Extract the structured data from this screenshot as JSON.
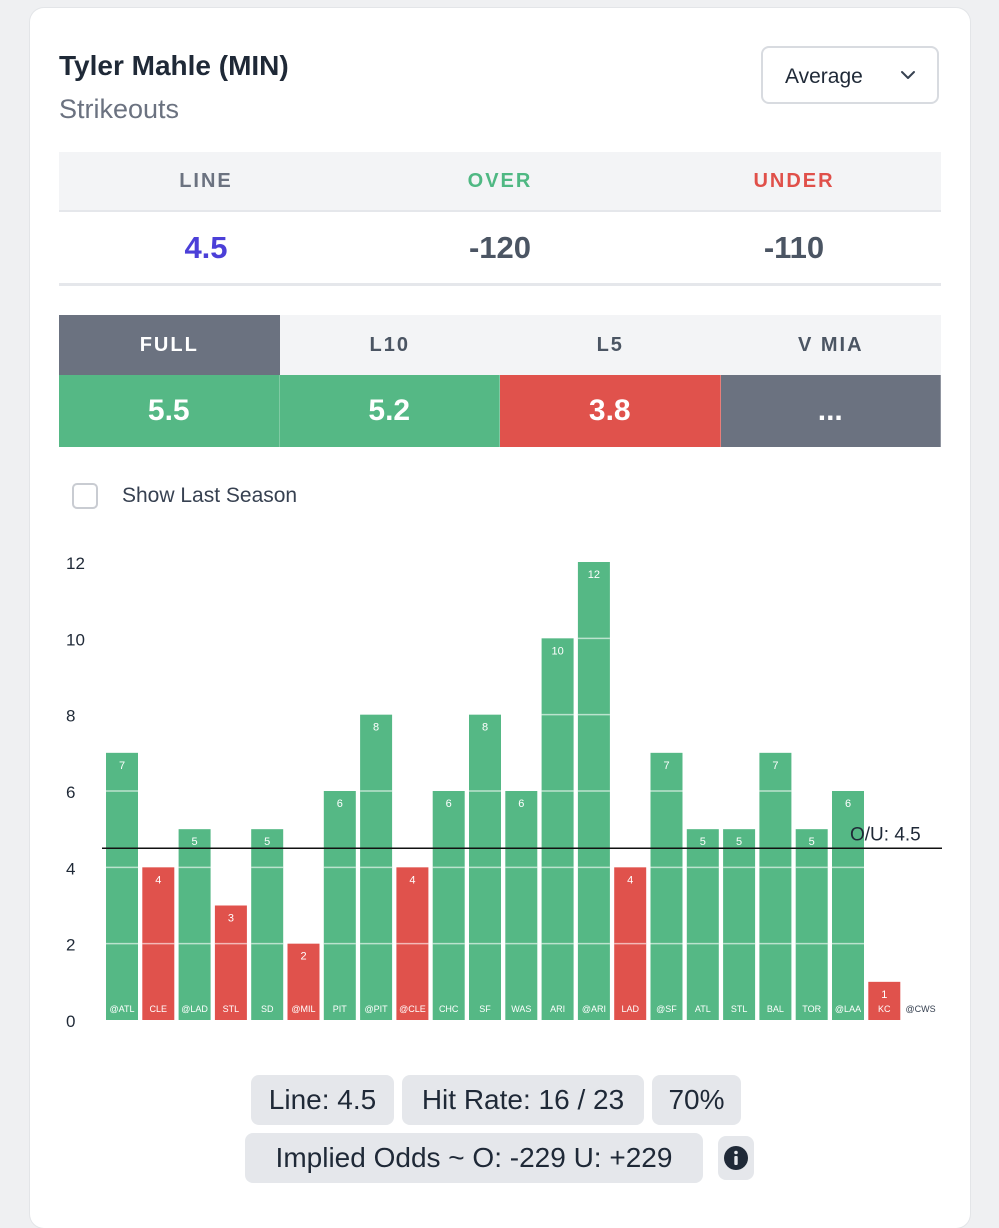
{
  "player": {
    "name": "Tyler Mahle (MIN)",
    "stat": "Strikeouts"
  },
  "dropdown": {
    "selected": "Average"
  },
  "odds": {
    "headers": [
      "LINE",
      "OVER",
      "UNDER"
    ],
    "values": [
      "4.5",
      "-120",
      "-110"
    ],
    "colors": {
      "line_header": "#6b7280",
      "over_header": "#4fb883",
      "under_header": "#e0504a",
      "line_value": "#4b3fd8"
    }
  },
  "tabs": {
    "labels": [
      "FULL",
      "L10",
      "L5",
      "V MIA"
    ],
    "values": [
      "5.5",
      "5.2",
      "3.8",
      "..."
    ],
    "active_index": 0,
    "value_colors": [
      "#55b885",
      "#55b885",
      "#e0524c",
      "#6b7280"
    ]
  },
  "show_last_season": {
    "label": "Show Last Season",
    "checked": false
  },
  "chart_data": {
    "type": "bar",
    "categories": [
      "@ATL",
      "CLE",
      "@LAD",
      "STL",
      "SD",
      "@MIL",
      "PIT",
      "@PIT",
      "@CLE",
      "CHC",
      "SF",
      "WAS",
      "ARI",
      "@ARI",
      "LAD",
      "@SF",
      "ATL",
      "STL",
      "BAL",
      "TOR",
      "@LAA",
      "KC",
      "@CWS"
    ],
    "values": [
      7,
      4,
      5,
      3,
      5,
      2,
      6,
      8,
      4,
      6,
      8,
      6,
      10,
      12,
      4,
      7,
      5,
      5,
      7,
      5,
      6,
      1,
      null
    ],
    "ylim": [
      0,
      12
    ],
    "yticks": [
      0,
      2,
      4,
      6,
      8,
      10,
      12
    ],
    "line": {
      "value": 4.5,
      "label": "O/U: 4.5"
    },
    "colors": {
      "over": "#55b885",
      "under": "#e0524c"
    },
    "grid": true
  },
  "summary": {
    "line": "Line: 4.5",
    "hit_rate": "Hit Rate: 16 / 23",
    "pct": "70%",
    "implied": "Implied Odds ~ O: -229 U: +229"
  }
}
